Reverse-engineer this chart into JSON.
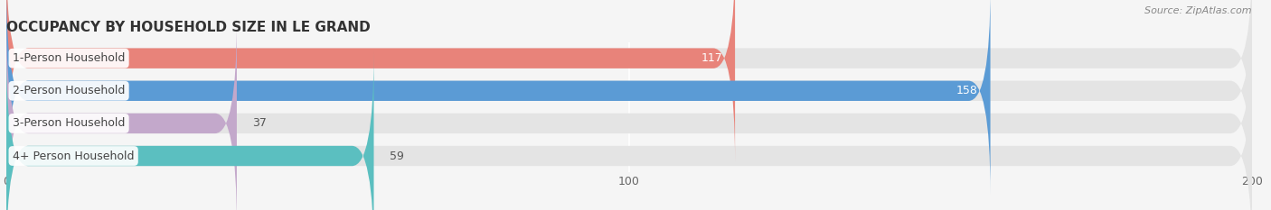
{
  "title": "OCCUPANCY BY HOUSEHOLD SIZE IN LE GRAND",
  "source": "Source: ZipAtlas.com",
  "categories": [
    "1-Person Household",
    "2-Person Household",
    "3-Person Household",
    "4+ Person Household"
  ],
  "values": [
    117,
    158,
    37,
    59
  ],
  "bar_colors": [
    "#E8837A",
    "#5B9BD5",
    "#C3A8CB",
    "#5BBFC0"
  ],
  "xlim": [
    0,
    200
  ],
  "xticks": [
    0,
    100,
    200
  ],
  "background_color": "#f5f5f5",
  "bar_background_color": "#e4e4e4",
  "title_fontsize": 11,
  "label_fontsize": 9,
  "value_fontsize": 9,
  "source_fontsize": 8,
  "bar_height": 0.62
}
